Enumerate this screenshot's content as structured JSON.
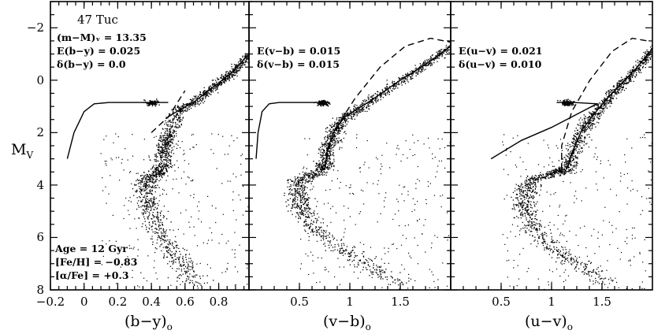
{
  "figure": {
    "ylabel": "M_V",
    "yticks": [
      "−2",
      "0",
      "2",
      "4",
      "6",
      "8"
    ],
    "ylim": [
      8,
      -3
    ]
  },
  "chart_data": [
    {
      "type": "scatter",
      "panel": "b-y",
      "title": "47 Tuc",
      "xlabel": "(b−y)",
      "xlabel_sub": "o",
      "xlim": [
        -0.2,
        0.98
      ],
      "xticks": [
        -0.2,
        0,
        0.2,
        0.4,
        0.6,
        0.8
      ],
      "xticklabels": [
        "−0.2",
        "0",
        "0.2",
        "0.4",
        "0.6",
        "0.8"
      ],
      "annotations_top": [
        "(m−M)ᵥ = 13.35",
        "E(b−y) = 0.025",
        "δ(b−y) = 0.0"
      ],
      "annotations_bottom": [
        "Age = 12 Gyr",
        "[Fe/H] = −0.83",
        "[α/Fe] = +0.3"
      ],
      "isochrone_solid": [
        [
          0.5,
          1.4
        ],
        [
          0.55,
          1.2
        ],
        [
          0.66,
          0.8
        ],
        [
          0.78,
          0.2
        ],
        [
          0.88,
          -0.3
        ],
        [
          0.98,
          -1.0
        ]
      ],
      "isochrone_dashed": [
        [
          0.4,
          2.0
        ],
        [
          0.5,
          1.4
        ],
        [
          0.6,
          0.4
        ]
      ],
      "horizontal_branch": [
        [
          -0.1,
          3.0
        ],
        [
          -0.06,
          2.0
        ],
        [
          0.0,
          1.2
        ],
        [
          0.06,
          0.9
        ],
        [
          0.15,
          0.85
        ],
        [
          0.35,
          0.85
        ],
        [
          0.5,
          0.85
        ]
      ],
      "sequence": [
        [
          0.66,
          7.8
        ],
        [
          0.6,
          7.2
        ],
        [
          0.52,
          6.5
        ],
        [
          0.43,
          5.6
        ],
        [
          0.38,
          4.9
        ],
        [
          0.36,
          4.3
        ],
        [
          0.37,
          3.8
        ],
        [
          0.44,
          3.5
        ],
        [
          0.47,
          3.2
        ],
        [
          0.48,
          2.5
        ],
        [
          0.5,
          2.0
        ],
        [
          0.55,
          1.2
        ],
        [
          0.66,
          0.8
        ],
        [
          0.78,
          0.2
        ],
        [
          0.88,
          -0.3
        ],
        [
          0.98,
          -1.0
        ]
      ],
      "clump": [
        0.4,
        0.85
      ]
    },
    {
      "type": "scatter",
      "panel": "v-b",
      "xlabel": "(v−b)",
      "xlabel_sub": "o",
      "xlim": [
        0.0,
        2.0
      ],
      "xticks": [
        0.5,
        1.0,
        1.5
      ],
      "xticklabels": [
        "0.5",
        "1",
        "1.5"
      ],
      "annotations_top": [
        "E(v−b) = 0.015",
        "δ(v−b) = 0.015"
      ],
      "isochrone_solid": [
        [
          0.75,
          3.4
        ],
        [
          0.78,
          2.6
        ],
        [
          0.85,
          1.9
        ],
        [
          0.95,
          1.4
        ],
        [
          1.2,
          0.8
        ],
        [
          1.5,
          0.0
        ],
        [
          1.75,
          -0.6
        ],
        [
          2.0,
          -1.3
        ]
      ],
      "isochrone_dashed": [
        [
          0.75,
          3.4
        ],
        [
          0.8,
          2.5
        ],
        [
          0.9,
          1.6
        ],
        [
          1.05,
          0.7
        ],
        [
          1.3,
          -0.5
        ],
        [
          1.55,
          -1.3
        ],
        [
          1.8,
          -1.6
        ],
        [
          2.0,
          -1.45
        ]
      ],
      "horizontal_branch": [
        [
          0.07,
          3.0
        ],
        [
          0.09,
          2.0
        ],
        [
          0.13,
          1.2
        ],
        [
          0.2,
          0.9
        ],
        [
          0.3,
          0.85
        ],
        [
          0.6,
          0.85
        ],
        [
          0.8,
          0.85
        ]
      ],
      "sequence": [
        [
          1.5,
          7.8
        ],
        [
          1.25,
          7.2
        ],
        [
          0.95,
          6.5
        ],
        [
          0.62,
          5.6
        ],
        [
          0.52,
          4.9
        ],
        [
          0.48,
          4.3
        ],
        [
          0.5,
          3.8
        ],
        [
          0.68,
          3.5
        ],
        [
          0.75,
          3.2
        ],
        [
          0.78,
          2.6
        ],
        [
          0.85,
          1.9
        ],
        [
          0.95,
          1.4
        ],
        [
          1.2,
          0.8
        ],
        [
          1.5,
          0.0
        ],
        [
          1.75,
          -0.6
        ],
        [
          2.0,
          -1.3
        ]
      ],
      "clump": [
        0.73,
        0.85
      ]
    },
    {
      "type": "scatter",
      "panel": "u-v",
      "xlabel": "(u−v)",
      "xlabel_sub": "o",
      "xlim": [
        0.0,
        2.0
      ],
      "xticks": [
        0.5,
        1.0,
        1.5
      ],
      "xticklabels": [
        "0.5",
        "1",
        "1.5"
      ],
      "annotations_top": [
        "E(u−v) = 0.021",
        "δ(u−v) = 0.010"
      ],
      "isochrone_solid": [
        [
          1.15,
          3.4
        ],
        [
          1.2,
          2.8
        ],
        [
          1.3,
          1.9
        ],
        [
          1.42,
          1.3
        ],
        [
          1.55,
          0.7
        ],
        [
          1.7,
          0.1
        ],
        [
          1.85,
          -0.5
        ],
        [
          2.0,
          -1.2
        ]
      ],
      "isochrone_dashed": [
        [
          1.1,
          3.4
        ],
        [
          1.1,
          2.5
        ],
        [
          1.2,
          1.2
        ],
        [
          1.38,
          0.0
        ],
        [
          1.6,
          -1.1
        ],
        [
          1.8,
          -1.6
        ],
        [
          1.95,
          -1.5
        ]
      ],
      "horizontal_branch": [
        [
          0.4,
          3.0
        ],
        [
          0.7,
          2.3
        ],
        [
          1.0,
          1.8
        ],
        [
          1.3,
          1.2
        ],
        [
          1.45,
          0.9
        ],
        [
          1.22,
          0.85
        ],
        [
          1.05,
          0.85
        ]
      ],
      "sequence": [
        [
          1.55,
          7.8
        ],
        [
          1.35,
          7.2
        ],
        [
          1.05,
          6.5
        ],
        [
          0.8,
          5.6
        ],
        [
          0.73,
          4.9
        ],
        [
          0.74,
          4.3
        ],
        [
          0.8,
          3.8
        ],
        [
          1.05,
          3.5
        ],
        [
          1.15,
          3.4
        ],
        [
          1.2,
          2.8
        ],
        [
          1.3,
          1.9
        ],
        [
          1.42,
          1.3
        ],
        [
          1.55,
          0.7
        ],
        [
          1.7,
          0.1
        ],
        [
          1.85,
          -0.5
        ],
        [
          2.0,
          -1.2
        ]
      ],
      "clump": [
        1.15,
        0.85
      ]
    }
  ]
}
